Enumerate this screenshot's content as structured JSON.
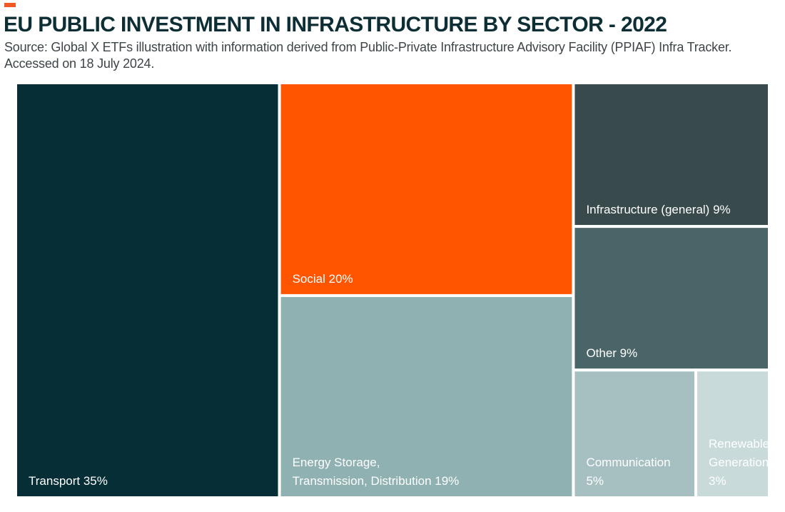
{
  "header": {
    "title": "EU PUBLIC INVESTMENT IN INFRASTRUCTURE BY SECTOR - 2022",
    "subtitle": "Source: Global X ETFs illustration with information derived from Public-Private Infrastructure Advisory Facility (PPIAF) Infra Tracker. Accessed on 18 July 2024."
  },
  "colors": {
    "accent": "#F05A22",
    "title_text": "#0E2E36",
    "subtitle_text": "#3D4548",
    "tile_border": "#FFFFFF"
  },
  "chart_data": {
    "type": "treemap",
    "title": "EU PUBLIC INVESTMENT IN INFRASTRUCTURE BY SECTOR - 2022",
    "unit": "%",
    "items": [
      {
        "name": "Transport",
        "value": 35,
        "label_lines": [
          "Transport 35%"
        ],
        "color": "#052E36",
        "text_color": "#FFFFFF"
      },
      {
        "name": "Social",
        "value": 20,
        "label_lines": [
          "Social 20%"
        ],
        "color": "#FF5500",
        "text_color": "#FFFFFF"
      },
      {
        "name": "Energy Storage, Transmission, Distribution",
        "value": 19,
        "label_lines": [
          "Energy Storage,",
          "Transmission, Distribution 19%"
        ],
        "color": "#8FB1B1",
        "text_color": "#FFFFFF"
      },
      {
        "name": "Infrastructure (general)",
        "value": 9,
        "label_lines": [
          "Infrastructure (general) 9%"
        ],
        "color": "#384A4C",
        "text_color": "#FFFFFF"
      },
      {
        "name": "Other",
        "value": 9,
        "label_lines": [
          "Other 9%"
        ],
        "color": "#4A6567",
        "text_color": "#FFFFFF"
      },
      {
        "name": "Communication",
        "value": 5,
        "label_lines": [
          "Communication",
          "5%"
        ],
        "color": "#A6C0C2",
        "text_color": "#FFFFFF"
      },
      {
        "name": "Renewable Generation",
        "value": 3,
        "label_lines": [
          "Renewable",
          "Generation",
          "3%"
        ],
        "color": "#C9DADA",
        "text_color": "#FFFFFF"
      }
    ]
  }
}
